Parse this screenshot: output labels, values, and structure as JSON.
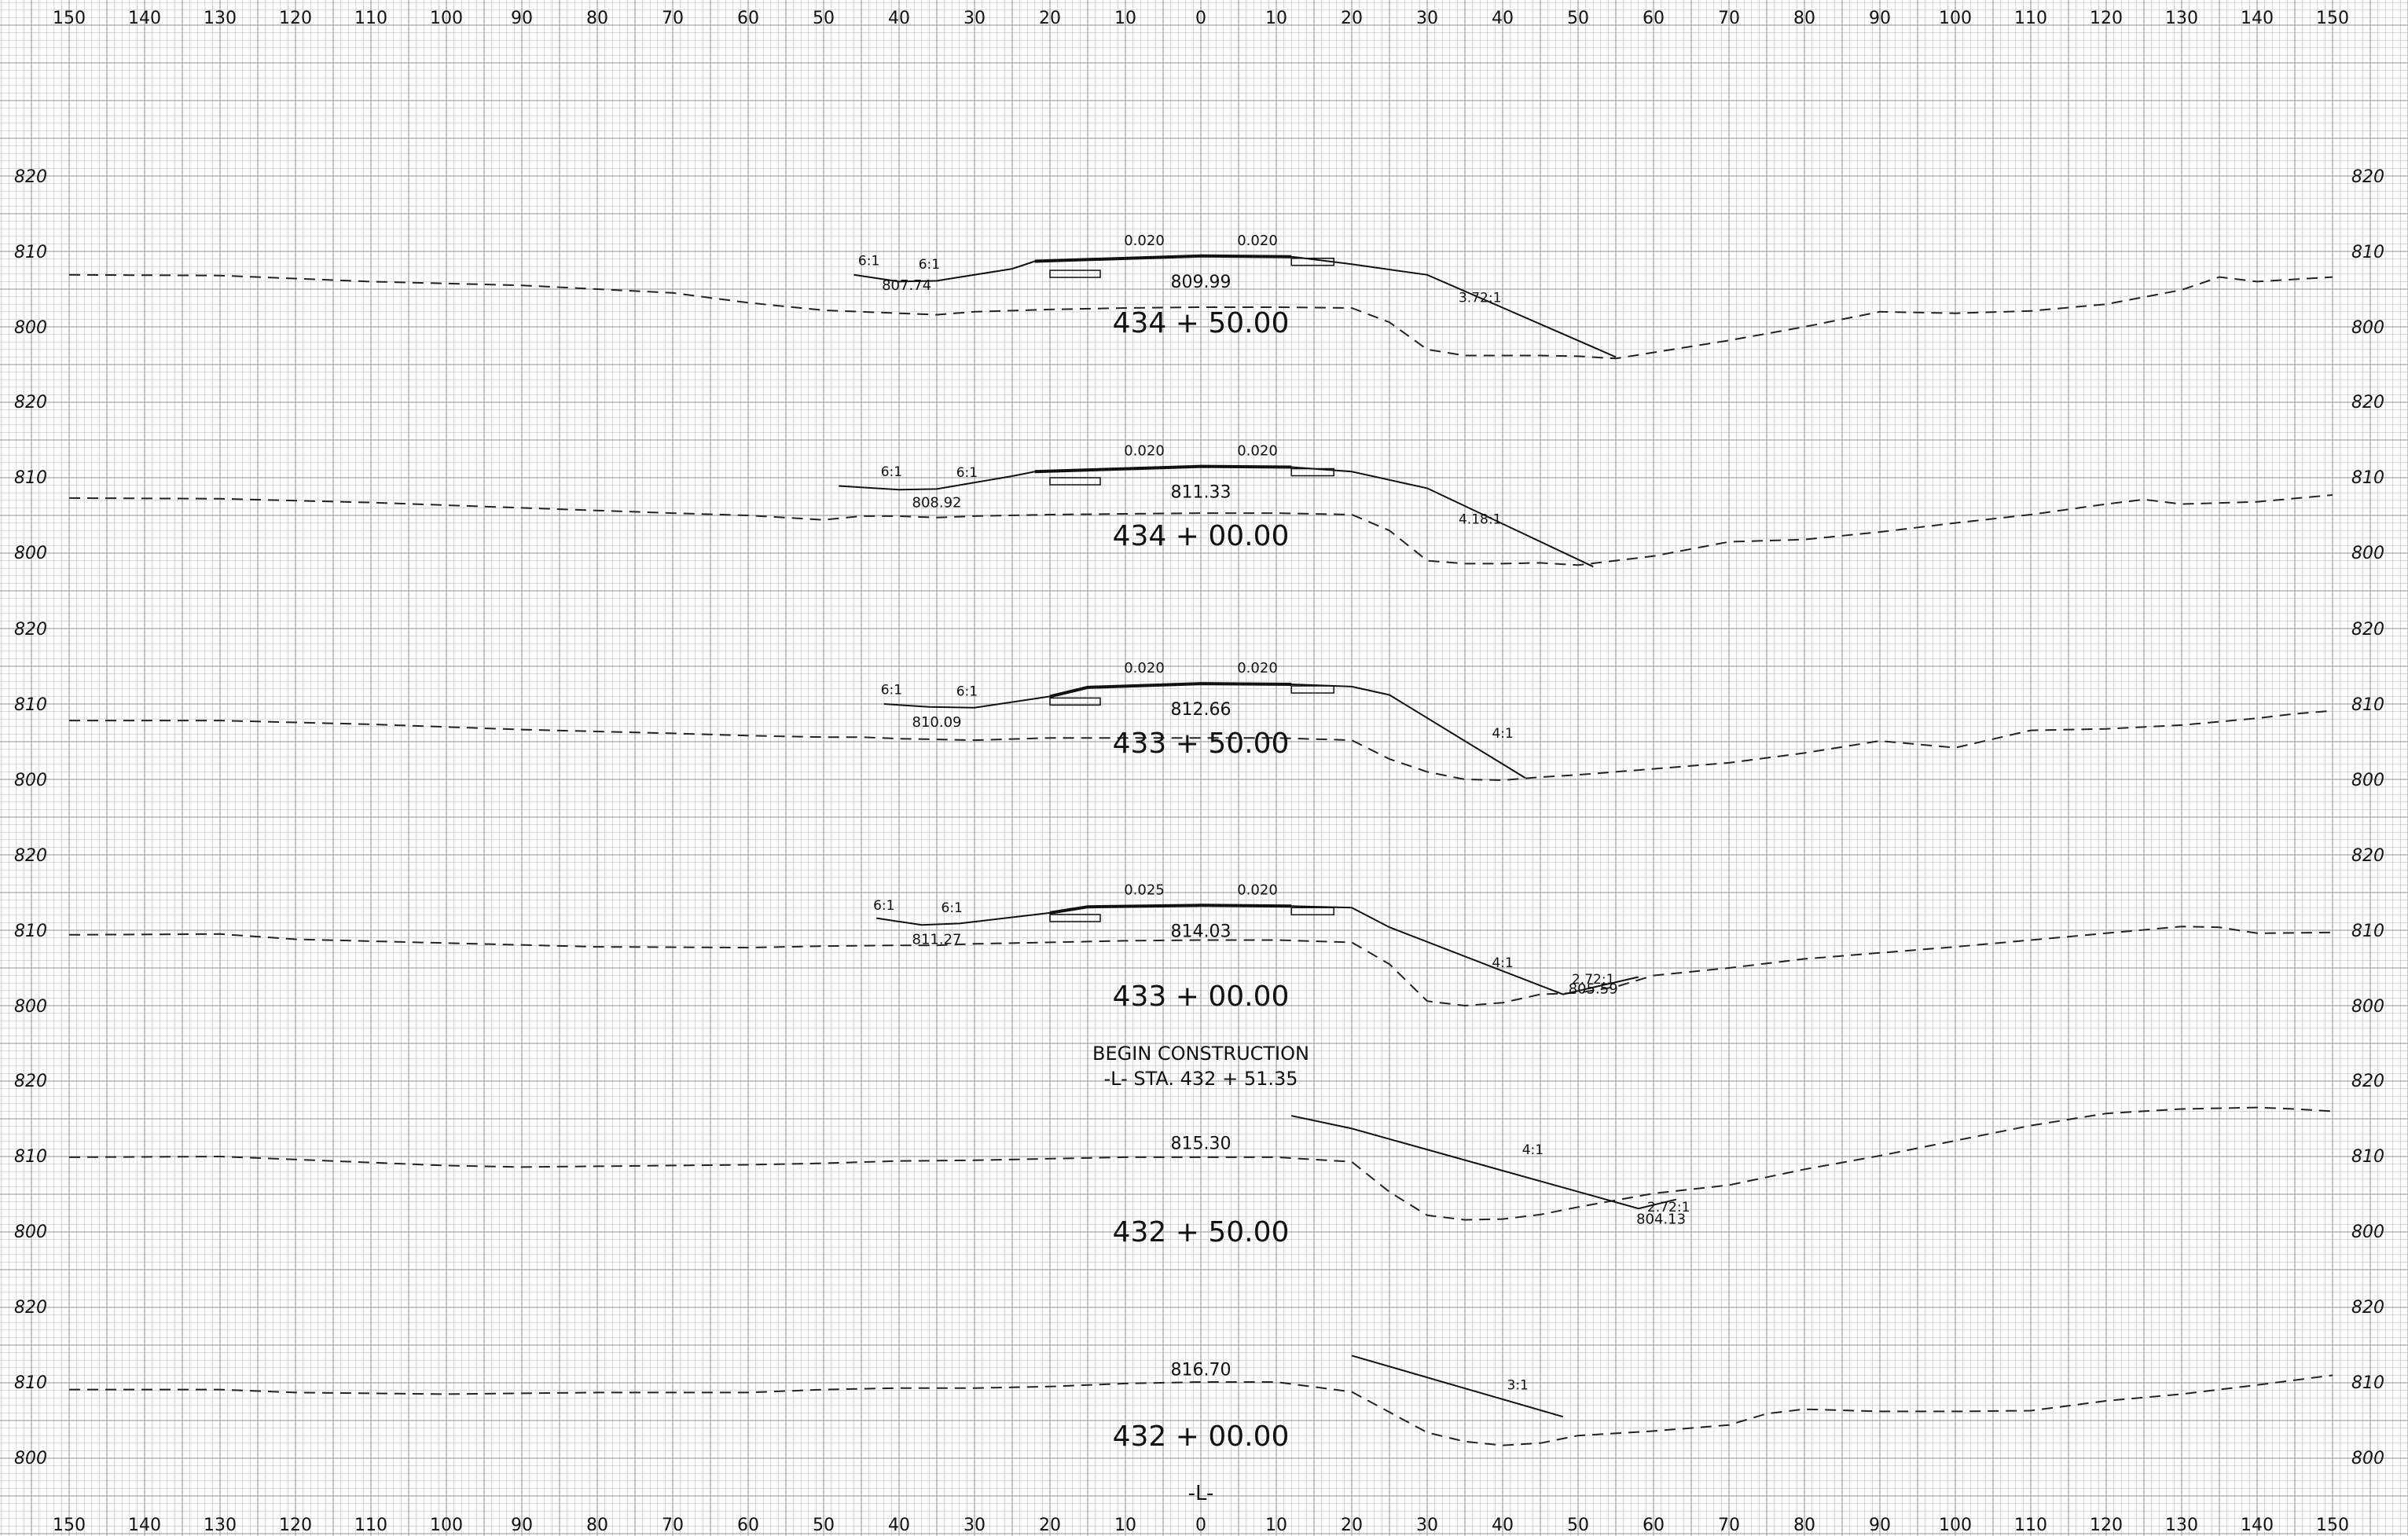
{
  "scale": {
    "offset_ticks": [
      150,
      140,
      130,
      120,
      110,
      100,
      90,
      80,
      70,
      60,
      50,
      40,
      30,
      20,
      10,
      0,
      10,
      20,
      30,
      40,
      50,
      60,
      70,
      80,
      90,
      100,
      110,
      120,
      130,
      140,
      150
    ]
  },
  "centerline_label": "-L-",
  "construction_note": {
    "line1": "BEGIN   CONSTRUCTION",
    "line2": "-L-  STA. 432 + 51.35"
  },
  "sections": [
    {
      "station": "434 + 50.00",
      "elevation_labels": [
        "820",
        "810",
        "800"
      ],
      "cl_elevation": "809.99",
      "grade_left": "0.020",
      "grade_right": "0.020",
      "slope_labels": [
        "6:1",
        "6:1",
        "3.72:1"
      ],
      "point_elevations": [
        "807.74"
      ]
    },
    {
      "station": "434 + 00.00",
      "elevation_labels": [
        "820",
        "810",
        "800"
      ],
      "cl_elevation": "811.33",
      "grade_left": "0.020",
      "grade_right": "0.020",
      "slope_labels": [
        "6:1",
        "6:1",
        "4.18:1"
      ],
      "point_elevations": [
        "808.92"
      ]
    },
    {
      "station": "433 + 50.00",
      "elevation_labels": [
        "820",
        "810",
        "800"
      ],
      "cl_elevation": "812.66",
      "grade_left": "0.020",
      "grade_right": "0.020",
      "slope_labels": [
        "6:1",
        "6:1",
        "4:1"
      ],
      "point_elevations": [
        "810.09"
      ]
    },
    {
      "station": "433 + 00.00",
      "elevation_labels": [
        "820",
        "810",
        "800"
      ],
      "cl_elevation": "814.03",
      "grade_left": "0.025",
      "grade_right": "0.020",
      "slope_labels": [
        "6:1",
        "6:1",
        "4:1",
        "2.72:1"
      ],
      "point_elevations": [
        "811.27",
        "805.59"
      ]
    },
    {
      "station": "432 + 50.00",
      "elevation_labels": [
        "820",
        "810",
        "800"
      ],
      "cl_elevation": "815.30",
      "grade_left": "",
      "grade_right": "",
      "slope_labels": [
        "4:1",
        "2.72:1"
      ],
      "point_elevations": [
        "804.13"
      ]
    },
    {
      "station": "432 + 00.00",
      "elevation_labels": [
        "820",
        "810",
        "800"
      ],
      "cl_elevation": "816.70",
      "grade_left": "",
      "grade_right": "",
      "slope_labels": [
        "3:1"
      ],
      "point_elevations": []
    }
  ],
  "ground_profiles": [
    [
      [
        -150,
        806.9
      ],
      [
        -130,
        806.8
      ],
      [
        -110,
        806.0
      ],
      [
        -90,
        805.5
      ],
      [
        -70,
        804.5
      ],
      [
        -60,
        803.2
      ],
      [
        -50,
        802.2
      ],
      [
        -45,
        802.0
      ],
      [
        -40,
        801.8
      ],
      [
        -35,
        801.6
      ],
      [
        -30,
        802.0
      ],
      [
        -20,
        802.3
      ],
      [
        -10,
        802.5
      ],
      [
        0,
        802.6
      ],
      [
        10,
        802.6
      ],
      [
        20,
        802.5
      ],
      [
        25,
        800.6
      ],
      [
        30,
        797.0
      ],
      [
        35,
        796.2
      ],
      [
        40,
        796.2
      ],
      [
        45,
        796.2
      ],
      [
        50,
        796.1
      ],
      [
        55,
        795.8
      ],
      [
        60,
        796.6
      ],
      [
        70,
        798.2
      ],
      [
        80,
        800.0
      ],
      [
        90,
        802.0
      ],
      [
        100,
        801.8
      ],
      [
        110,
        802.1
      ],
      [
        120,
        803.0
      ],
      [
        130,
        804.9
      ],
      [
        135,
        806.6
      ],
      [
        140,
        806.0
      ],
      [
        150,
        806.6
      ]
    ],
    [
      [
        -150,
        807.2
      ],
      [
        -130,
        807.1
      ],
      [
        -110,
        806.6
      ],
      [
        -90,
        805.9
      ],
      [
        -70,
        805.2
      ],
      [
        -60,
        804.9
      ],
      [
        -50,
        804.3
      ],
      [
        -45,
        804.8
      ],
      [
        -40,
        804.8
      ],
      [
        -35,
        804.6
      ],
      [
        -30,
        804.8
      ],
      [
        -20,
        805.0
      ],
      [
        -10,
        805.1
      ],
      [
        0,
        805.2
      ],
      [
        10,
        805.2
      ],
      [
        20,
        805.0
      ],
      [
        25,
        802.9
      ],
      [
        30,
        798.9
      ],
      [
        35,
        798.5
      ],
      [
        40,
        798.5
      ],
      [
        45,
        798.6
      ],
      [
        50,
        798.3
      ],
      [
        60,
        799.5
      ],
      [
        70,
        801.4
      ],
      [
        80,
        801.7
      ],
      [
        90,
        802.7
      ],
      [
        100,
        803.9
      ],
      [
        110,
        805.0
      ],
      [
        120,
        806.4
      ],
      [
        125,
        807.0
      ],
      [
        130,
        806.4
      ],
      [
        140,
        806.7
      ],
      [
        150,
        807.6
      ]
    ],
    [
      [
        -150,
        807.8
      ],
      [
        -130,
        807.8
      ],
      [
        -110,
        807.3
      ],
      [
        -90,
        806.6
      ],
      [
        -70,
        806.1
      ],
      [
        -60,
        805.8
      ],
      [
        -50,
        805.6
      ],
      [
        -45,
        805.6
      ],
      [
        -40,
        805.4
      ],
      [
        -35,
        805.3
      ],
      [
        -30,
        805.2
      ],
      [
        -20,
        805.5
      ],
      [
        -10,
        805.5
      ],
      [
        0,
        805.5
      ],
      [
        10,
        805.5
      ],
      [
        20,
        805.2
      ],
      [
        25,
        802.7
      ],
      [
        30,
        801.0
      ],
      [
        35,
        800.0
      ],
      [
        40,
        799.9
      ],
      [
        45,
        800.3
      ],
      [
        50,
        800.6
      ],
      [
        60,
        801.4
      ],
      [
        70,
        802.2
      ],
      [
        80,
        803.5
      ],
      [
        90,
        805.1
      ],
      [
        100,
        804.2
      ],
      [
        110,
        806.5
      ],
      [
        120,
        806.7
      ],
      [
        130,
        807.2
      ],
      [
        140,
        808.1
      ],
      [
        145,
        808.7
      ],
      [
        150,
        809.1
      ]
    ],
    [
      [
        -150,
        809.4
      ],
      [
        -130,
        809.5
      ],
      [
        -120,
        808.8
      ],
      [
        -100,
        808.3
      ],
      [
        -80,
        807.8
      ],
      [
        -60,
        807.7
      ],
      [
        -50,
        807.9
      ],
      [
        -40,
        808.0
      ],
      [
        -35,
        808.0
      ],
      [
        -30,
        808.2
      ],
      [
        -20,
        808.4
      ],
      [
        -10,
        808.6
      ],
      [
        0,
        808.7
      ],
      [
        10,
        808.7
      ],
      [
        20,
        808.4
      ],
      [
        25,
        805.5
      ],
      [
        30,
        800.6
      ],
      [
        35,
        800.0
      ],
      [
        40,
        800.4
      ],
      [
        45,
        801.5
      ],
      [
        50,
        801.7
      ],
      [
        55,
        802.5
      ],
      [
        60,
        804.0
      ],
      [
        70,
        805.0
      ],
      [
        80,
        806.2
      ],
      [
        90,
        807.0
      ],
      [
        100,
        807.8
      ],
      [
        110,
        808.7
      ],
      [
        120,
        809.6
      ],
      [
        130,
        810.5
      ],
      [
        135,
        810.4
      ],
      [
        140,
        809.6
      ],
      [
        150,
        809.7
      ]
    ],
    [
      [
        -150,
        809.8
      ],
      [
        -130,
        809.9
      ],
      [
        -120,
        809.5
      ],
      [
        -100,
        808.7
      ],
      [
        -90,
        808.5
      ],
      [
        -80,
        808.6
      ],
      [
        -60,
        808.8
      ],
      [
        -50,
        809.0
      ],
      [
        -40,
        809.3
      ],
      [
        -30,
        809.4
      ],
      [
        -20,
        809.6
      ],
      [
        -10,
        809.8
      ],
      [
        0,
        809.8
      ],
      [
        10,
        809.8
      ],
      [
        20,
        809.2
      ],
      [
        25,
        805.2
      ],
      [
        30,
        802.1
      ],
      [
        35,
        801.5
      ],
      [
        40,
        801.6
      ],
      [
        45,
        802.2
      ],
      [
        50,
        803.2
      ],
      [
        60,
        805.0
      ],
      [
        70,
        806.1
      ],
      [
        80,
        808.2
      ],
      [
        90,
        810.0
      ],
      [
        100,
        812.0
      ],
      [
        110,
        814.0
      ],
      [
        120,
        815.6
      ],
      [
        130,
        816.2
      ],
      [
        140,
        816.4
      ],
      [
        145,
        816.2
      ],
      [
        150,
        815.9
      ]
    ],
    [
      [
        -150,
        809.0
      ],
      [
        -130,
        809.0
      ],
      [
        -120,
        808.6
      ],
      [
        -100,
        808.4
      ],
      [
        -80,
        808.6
      ],
      [
        -60,
        808.6
      ],
      [
        -50,
        809.0
      ],
      [
        -40,
        809.2
      ],
      [
        -30,
        809.2
      ],
      [
        -20,
        809.4
      ],
      [
        -10,
        809.8
      ],
      [
        0,
        810.0
      ],
      [
        10,
        810.0
      ],
      [
        20,
        808.7
      ],
      [
        25,
        806.0
      ],
      [
        30,
        803.3
      ],
      [
        35,
        802.1
      ],
      [
        40,
        801.6
      ],
      [
        45,
        801.9
      ],
      [
        50,
        802.9
      ],
      [
        60,
        803.5
      ],
      [
        70,
        804.3
      ],
      [
        75,
        805.8
      ],
      [
        80,
        806.4
      ],
      [
        90,
        806.1
      ],
      [
        100,
        806.1
      ],
      [
        110,
        806.2
      ],
      [
        120,
        807.5
      ],
      [
        130,
        808.4
      ],
      [
        140,
        809.6
      ],
      [
        150,
        810.9
      ]
    ]
  ],
  "templates": [
    [
      [
        -46,
        806.9
      ],
      [
        -40,
        806.0
      ],
      [
        -35,
        806.1
      ],
      [
        -25,
        807.7
      ],
      [
        -22,
        808.7
      ],
      [
        0,
        809.4
      ],
      [
        12,
        809.3
      ],
      [
        20,
        808.3
      ],
      [
        30,
        806.9
      ],
      [
        55,
        796.0
      ]
    ],
    [
      [
        -48,
        808.8
      ],
      [
        -40,
        808.3
      ],
      [
        -35,
        808.4
      ],
      [
        -25,
        810.1
      ],
      [
        -22,
        810.7
      ],
      [
        0,
        811.4
      ],
      [
        12,
        811.3
      ],
      [
        20,
        810.7
      ],
      [
        30,
        808.5
      ],
      [
        52,
        798.1
      ]
    ],
    [
      [
        -42,
        810.0
      ],
      [
        -36,
        809.6
      ],
      [
        -30,
        809.5
      ],
      [
        -20,
        811.0
      ],
      [
        -15,
        812.2
      ],
      [
        0,
        812.7
      ],
      [
        12,
        812.6
      ],
      [
        20,
        812.3
      ],
      [
        25,
        811.2
      ],
      [
        43,
        800.2
      ]
    ],
    [
      [
        -43,
        811.6
      ],
      [
        -37,
        810.7
      ],
      [
        -32,
        810.9
      ],
      [
        -20,
        812.3
      ],
      [
        -15,
        813.1
      ],
      [
        0,
        813.3
      ],
      [
        12,
        813.2
      ],
      [
        20,
        813.0
      ],
      [
        25,
        810.4
      ],
      [
        48,
        801.5
      ],
      [
        58,
        803.8
      ]
    ],
    [
      [
        12,
        815.3
      ],
      [
        20,
        813.6
      ],
      [
        58,
        803.0
      ],
      [
        63,
        804.2
      ]
    ],
    [
      [
        20,
        813.5
      ],
      [
        48,
        805.4
      ]
    ]
  ]
}
